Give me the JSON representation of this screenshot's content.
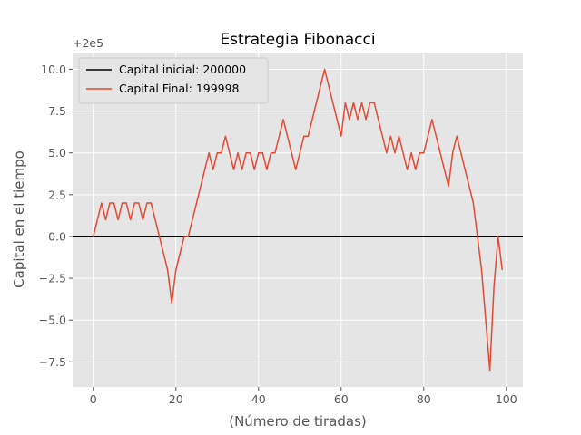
{
  "chart_data": {
    "type": "line",
    "title": "Estrategia Fibonacci",
    "xlabel": "(Número de tiradas)",
    "ylabel": "Capital en el tiempo",
    "y_offset_label": "+2e5",
    "xlim": [
      -5,
      104
    ],
    "ylim": [
      -9,
      11
    ],
    "x_ticks": [
      0,
      20,
      40,
      60,
      80,
      100
    ],
    "y_ticks": [
      -7.5,
      -5.0,
      -2.5,
      0.0,
      2.5,
      5.0,
      7.5,
      10.0
    ],
    "x_tick_labels": [
      "0",
      "20",
      "40",
      "60",
      "80",
      "100"
    ],
    "y_tick_labels": [
      "−7.5",
      "−5.0",
      "−2.5",
      "0.0",
      "2.5",
      "5.0",
      "7.5",
      "10.0"
    ],
    "grid": true,
    "legend_position": "top-left",
    "series": [
      {
        "name": "Capital inicial: 200000",
        "kind": "hline",
        "y": 0,
        "color": "#000000"
      },
      {
        "name": "Capital Final: 199998",
        "kind": "line",
        "color": "#E24A33",
        "x": [
          0,
          1,
          2,
          3,
          4,
          5,
          6,
          7,
          8,
          9,
          10,
          11,
          12,
          13,
          14,
          15,
          16,
          17,
          18,
          19,
          20,
          21,
          22,
          23,
          24,
          25,
          26,
          27,
          28,
          29,
          30,
          31,
          32,
          33,
          34,
          35,
          36,
          37,
          38,
          39,
          40,
          41,
          42,
          43,
          44,
          45,
          46,
          47,
          48,
          49,
          50,
          51,
          52,
          53,
          54,
          55,
          56,
          57,
          58,
          59,
          60,
          61,
          62,
          63,
          64,
          65,
          66,
          67,
          68,
          69,
          70,
          71,
          72,
          73,
          74,
          75,
          76,
          77,
          78,
          79,
          80,
          81,
          82,
          83,
          84,
          85,
          86,
          87,
          88,
          89,
          90,
          91,
          92,
          93,
          94,
          95,
          96,
          97,
          98,
          99
        ],
        "values": [
          0,
          1,
          2,
          1,
          2,
          2,
          1,
          2,
          2,
          1,
          2,
          2,
          1,
          2,
          2,
          1,
          0,
          -1,
          -2,
          -4,
          -2,
          -1,
          0,
          0,
          1,
          2,
          3,
          4,
          5,
          4,
          5,
          5,
          6,
          5,
          4,
          5,
          4,
          5,
          5,
          4,
          5,
          5,
          4,
          5,
          5,
          6,
          7,
          6,
          5,
          4,
          5,
          6,
          6,
          7,
          8,
          9,
          10,
          9,
          8,
          7,
          6,
          8,
          7,
          8,
          7,
          8,
          7,
          8,
          8,
          7,
          6,
          5,
          6,
          5,
          6,
          5,
          4,
          5,
          4,
          5,
          5,
          6,
          7,
          6,
          5,
          4,
          3,
          5,
          6,
          5,
          4,
          3,
          2,
          0,
          -2,
          -5,
          -8,
          -3,
          0,
          -2
        ]
      }
    ]
  }
}
